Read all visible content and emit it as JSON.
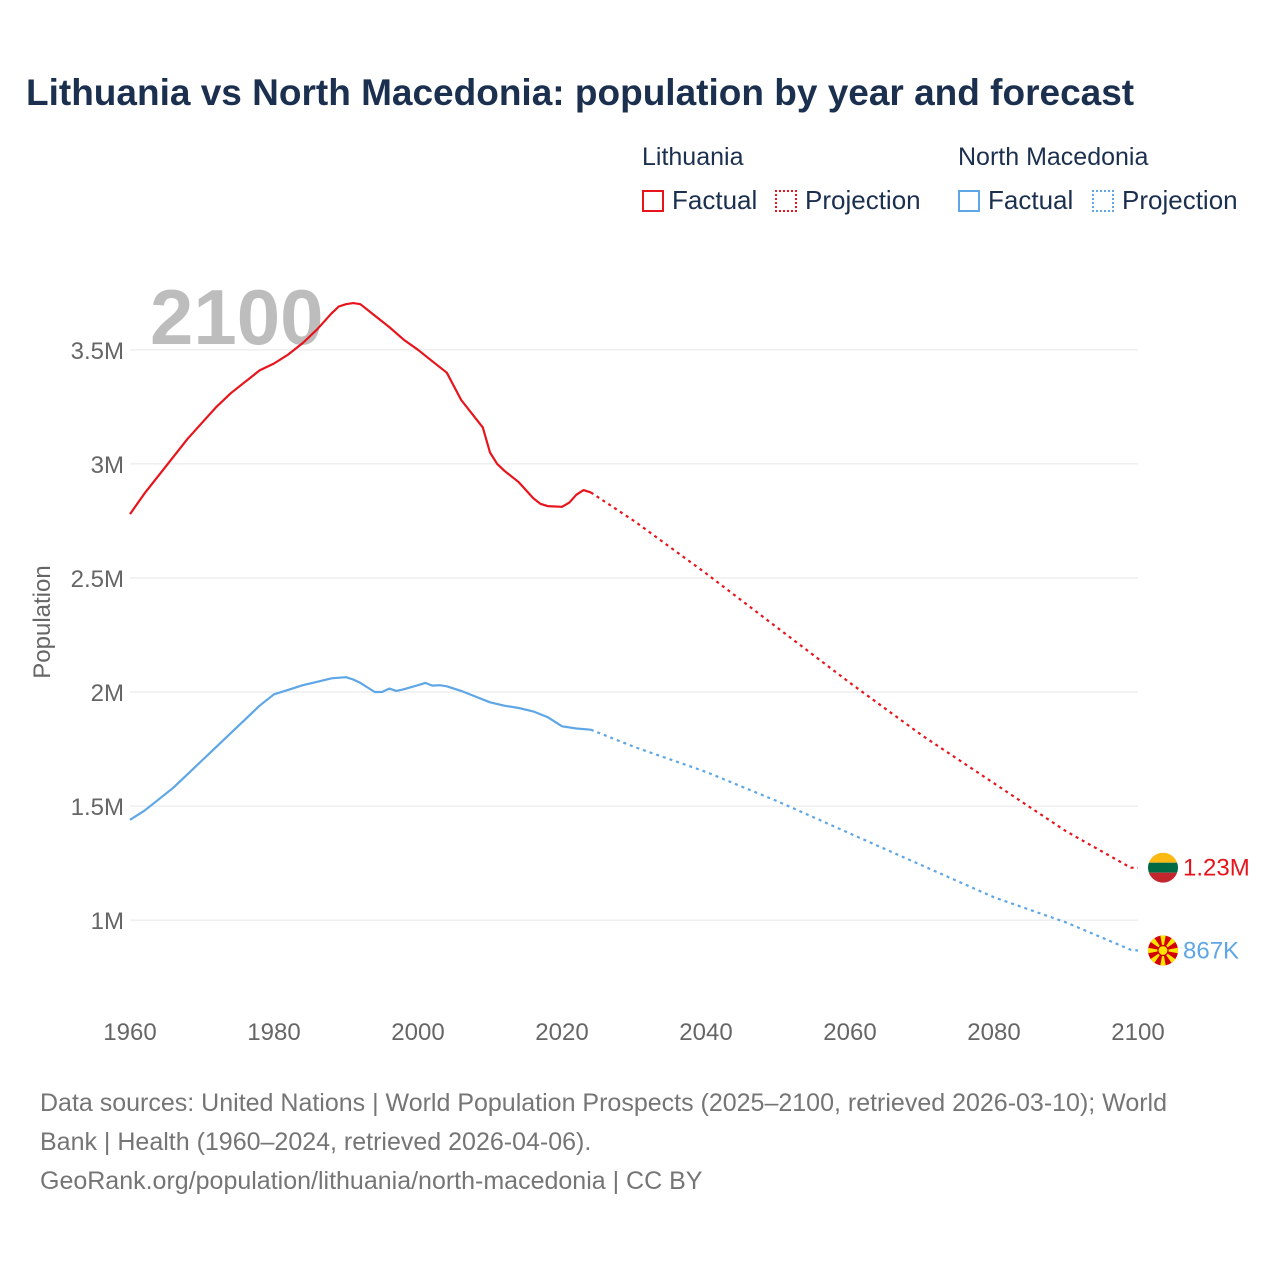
{
  "title": "Lithuania vs North Macedonia: population by year and forecast",
  "legend": {
    "groups": [
      {
        "name": "Lithuania",
        "color": "#e8141b",
        "factual_label": "Factual",
        "projection_label": "Projection"
      },
      {
        "name": "North Macedonia",
        "color": "#5ea6e6",
        "factual_label": "Factual",
        "projection_label": "Projection"
      }
    ]
  },
  "source": {
    "line1": "Data sources: United Nations | World Population Prospects (2025–2100, retrieved 2026-03-10); World",
    "line2": "Bank | Health (1960–2024, retrieved 2026-04-06).",
    "line3": "GeoRank.org/population/lithuania/north-macedonia | CC BY"
  },
  "chart_data": {
    "type": "line",
    "title": "Lithuania vs North Macedonia: population by year and forecast",
    "xlabel": "",
    "ylabel": "Population",
    "xlim": [
      1960,
      2100
    ],
    "ylim": [
      650000,
      3850000
    ],
    "x_ticks": [
      1960,
      1980,
      2000,
      2020,
      2040,
      2060,
      2080,
      2100
    ],
    "y_ticks": [
      1000000,
      1500000,
      2000000,
      2500000,
      3000000,
      3500000
    ],
    "y_tick_labels": [
      "1M",
      "1.5M",
      "2M",
      "2.5M",
      "3M",
      "3.5M"
    ],
    "current_year_label": "2100",
    "grid": true,
    "series": [
      {
        "name": "Lithuania",
        "color": "#e8141b",
        "end_label": "1.23M",
        "flag": "lithuania-flag",
        "factual": {
          "x": [
            1960,
            1962,
            1964,
            1966,
            1968,
            1970,
            1972,
            1974,
            1976,
            1978,
            1980,
            1982,
            1984,
            1986,
            1988,
            1989,
            1990,
            1991,
            1992,
            1994,
            1996,
            1998,
            2000,
            2002,
            2004,
            2006,
            2008,
            2009,
            2010,
            2011,
            2012,
            2014,
            2016,
            2017,
            2018,
            2020,
            2021,
            2022,
            2023,
            2024
          ],
          "y": [
            2780000,
            2870000,
            2950000,
            3030000,
            3110000,
            3180000,
            3250000,
            3310000,
            3360000,
            3410000,
            3440000,
            3480000,
            3530000,
            3590000,
            3660000,
            3690000,
            3700000,
            3705000,
            3700000,
            3650000,
            3600000,
            3545000,
            3500000,
            3450000,
            3400000,
            3280000,
            3200000,
            3160000,
            3050000,
            3000000,
            2970000,
            2920000,
            2850000,
            2825000,
            2815000,
            2812000,
            2830000,
            2865000,
            2885000,
            2875000
          ]
        },
        "projection": {
          "x": [
            2024,
            2030,
            2040,
            2050,
            2060,
            2070,
            2080,
            2090,
            2099,
            2100
          ],
          "y": [
            2875000,
            2750000,
            2520000,
            2280000,
            2040000,
            1810000,
            1600000,
            1390000,
            1230000,
            1230000
          ]
        }
      },
      {
        "name": "North Macedonia",
        "color": "#5ea6e6",
        "end_label": "867K",
        "flag": "north-macedonia-flag",
        "factual": {
          "x": [
            1960,
            1962,
            1964,
            1966,
            1968,
            1970,
            1972,
            1974,
            1976,
            1978,
            1980,
            1982,
            1984,
            1986,
            1988,
            1990,
            1991,
            1992,
            1993,
            1994,
            1995,
            1996,
            1997,
            1998,
            2000,
            2001,
            2002,
            2003,
            2004,
            2006,
            2008,
            2010,
            2012,
            2014,
            2016,
            2018,
            2020,
            2022,
            2024
          ],
          "y": [
            1440000,
            1480000,
            1530000,
            1580000,
            1640000,
            1700000,
            1760000,
            1820000,
            1880000,
            1940000,
            1990000,
            2010000,
            2030000,
            2045000,
            2060000,
            2065000,
            2055000,
            2040000,
            2020000,
            2000000,
            2000000,
            2015000,
            2005000,
            2012000,
            2030000,
            2040000,
            2028000,
            2030000,
            2025000,
            2005000,
            1980000,
            1955000,
            1940000,
            1930000,
            1915000,
            1890000,
            1850000,
            1840000,
            1835000
          ]
        },
        "projection": {
          "x": [
            2024,
            2030,
            2040,
            2050,
            2060,
            2070,
            2080,
            2090,
            2099,
            2100
          ],
          "y": [
            1835000,
            1760000,
            1650000,
            1520000,
            1380000,
            1240000,
            1100000,
            990000,
            870000,
            867000
          ]
        }
      }
    ]
  }
}
